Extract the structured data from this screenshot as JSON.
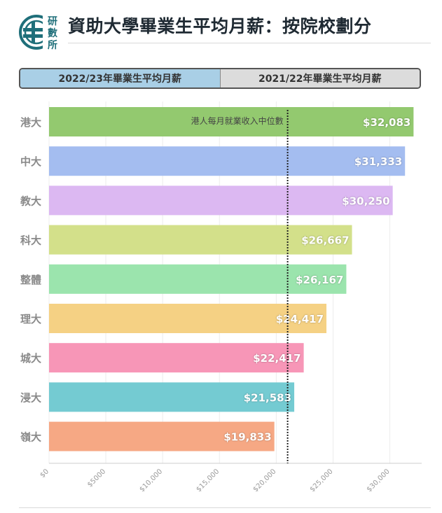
{
  "header": {
    "logo_text": "研數所",
    "title": "資助大學畢業生平均月薪：按院校劃分"
  },
  "tabs": [
    {
      "label": "2022/23年畢業生平均月薪",
      "active": true
    },
    {
      "label": "2021/22年畢業生平均月薪",
      "active": false
    }
  ],
  "chart_data": {
    "type": "bar",
    "orientation": "horizontal",
    "categories": [
      "港大",
      "中大",
      "教大",
      "科大",
      "整體",
      "理大",
      "城大",
      "浸大",
      "嶺大"
    ],
    "values": [
      32083,
      31333,
      30250,
      26667,
      26167,
      24417,
      22417,
      21583,
      19833
    ],
    "value_labels": [
      "$32,083",
      "$31,333",
      "$30,250",
      "$26,667",
      "$26,167",
      "$24,417",
      "$22,417",
      "$21,583",
      "$19,833"
    ],
    "colors": [
      "#93c96f",
      "#a4bdf0",
      "#dcb8f2",
      "#d3e08a",
      "#9be4ad",
      "#f5d184",
      "#f796b7",
      "#74cbd2",
      "#f6a884"
    ],
    "x_ticks": [
      0,
      5000,
      10000,
      15000,
      20000,
      25000,
      30000
    ],
    "x_tick_labels": [
      "$0",
      "$5000",
      "$10,000",
      "$15,000",
      "$20,000",
      "$25,000",
      "$30,000"
    ],
    "xlim": [
      0,
      32800
    ],
    "reference_line": {
      "value": 21000,
      "label": "港人每月就業收入中位數"
    },
    "title": "資助大學畢業生平均月薪：按院校劃分",
    "xlabel": "",
    "ylabel": ""
  }
}
